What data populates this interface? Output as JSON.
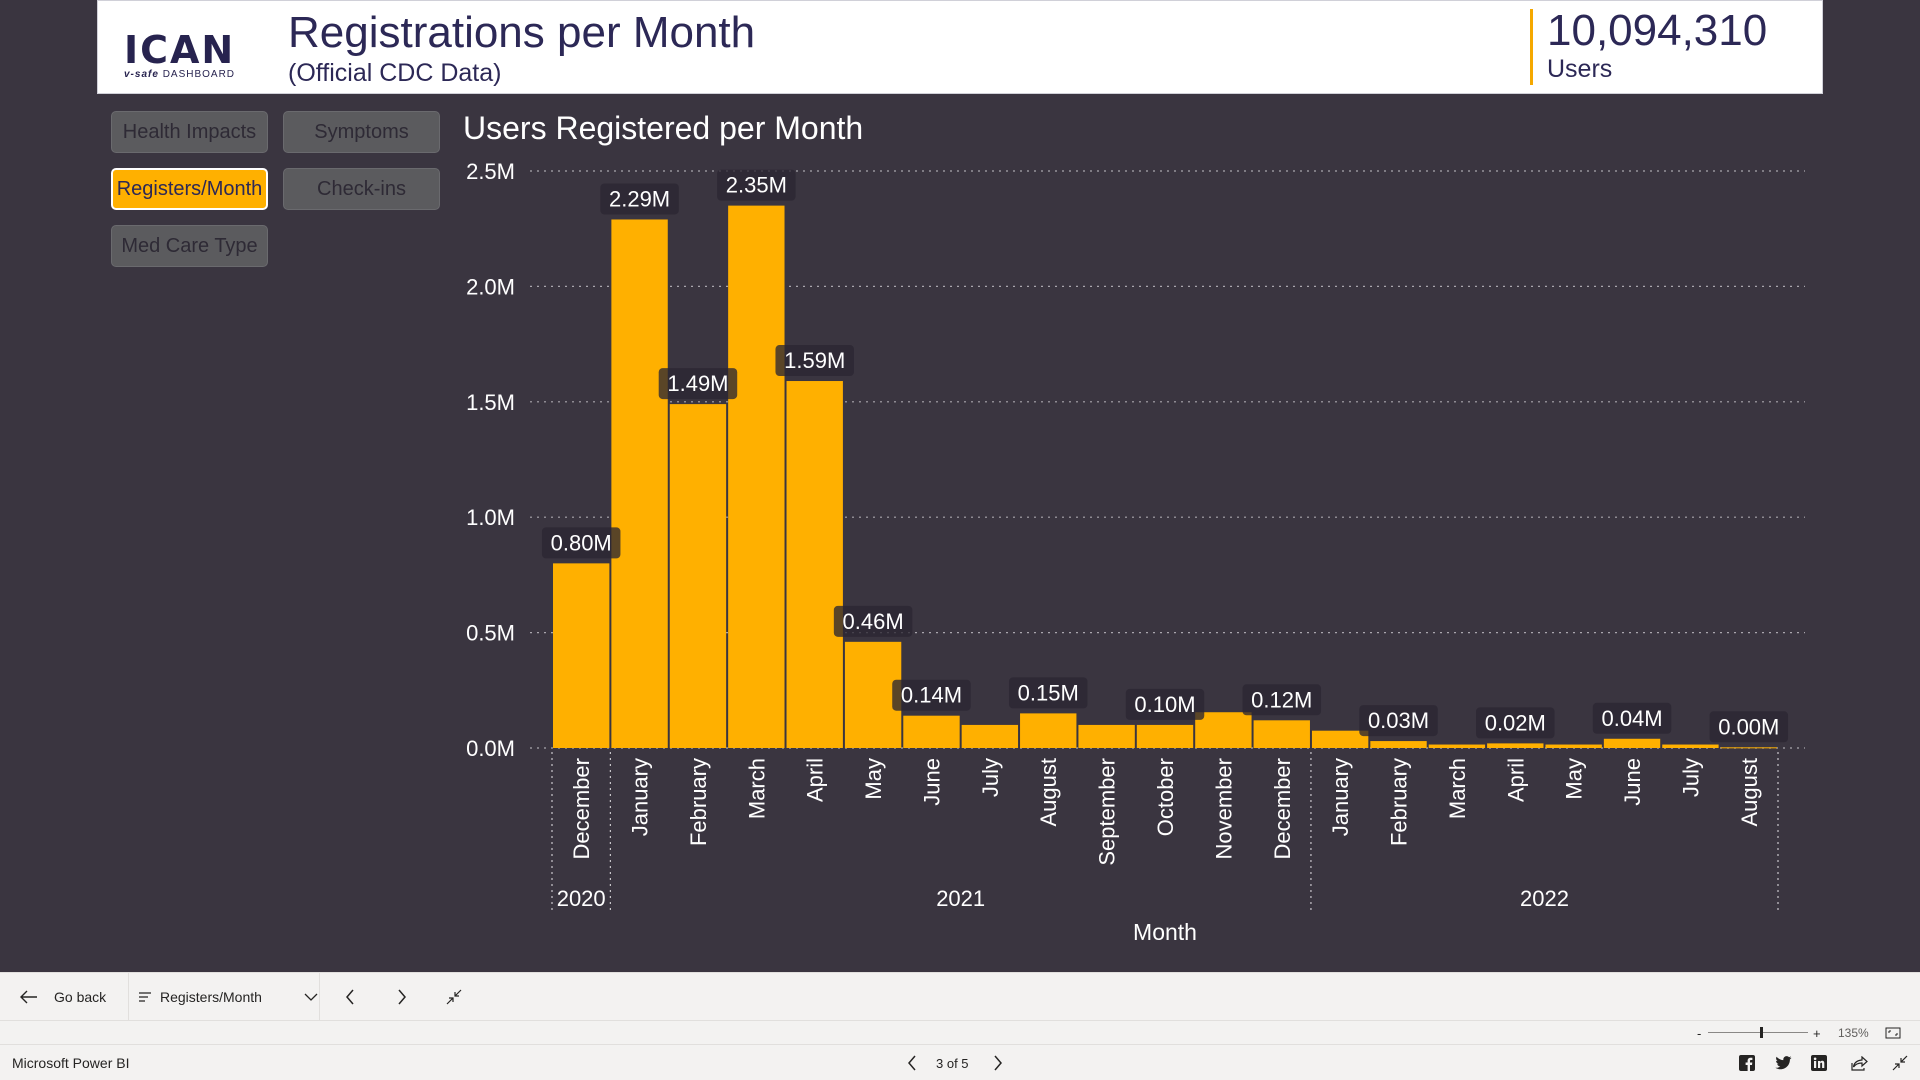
{
  "header": {
    "logo_text": "ICAN",
    "logo_sub_brand": "v-safe",
    "logo_sub_rest": "DASHBOARD",
    "title": "Registrations per Month",
    "subtitle": "(Official CDC Data)",
    "kpi_value": "10,094,310",
    "kpi_label": "Users",
    "accent_color": "#ffb000"
  },
  "nav": {
    "buttons": [
      {
        "label": "Health Impacts",
        "active": false
      },
      {
        "label": "Symptoms",
        "active": false
      },
      {
        "label": "Registers/Month",
        "active": true
      },
      {
        "label": "Check-ins",
        "active": false
      },
      {
        "label": "Med Care Type",
        "active": false
      }
    ]
  },
  "chart_data": {
    "type": "bar",
    "title": "Users Registered per Month",
    "xlabel": "Month",
    "ylabel": "",
    "ylim": [
      0,
      2500000
    ],
    "yticks": [
      "0.0M",
      "0.5M",
      "1.0M",
      "1.5M",
      "2.0M",
      "2.5M"
    ],
    "grid": true,
    "bar_color": "#ffb000",
    "categories": [
      "December",
      "January",
      "February",
      "March",
      "April",
      "May",
      "June",
      "July",
      "August",
      "September",
      "October",
      "November",
      "December",
      "January",
      "February",
      "March",
      "April",
      "May",
      "June",
      "July",
      "August"
    ],
    "years": [
      {
        "label": "2020",
        "span": 1
      },
      {
        "label": "2021",
        "span": 12
      },
      {
        "label": "2022",
        "span": 8
      }
    ],
    "values": [
      800000,
      2290000,
      1490000,
      2350000,
      1590000,
      460000,
      140000,
      100000,
      150000,
      100000,
      100000,
      155000,
      120000,
      75000,
      30000,
      15000,
      20000,
      15000,
      40000,
      15000,
      3000
    ],
    "data_labels": [
      "0.80M",
      "2.29M",
      "1.49M",
      "2.35M",
      "1.59M",
      "0.46M",
      "0.14M",
      "",
      "0.15M",
      "",
      "0.10M",
      "",
      "0.12M",
      "",
      "0.03M",
      "",
      "0.02M",
      "",
      "0.04M",
      "",
      "0.00M"
    ]
  },
  "bottom_bar": {
    "go_back": "Go back",
    "page_name": "Registers/Month"
  },
  "zoom": {
    "minus": "-",
    "plus": "+",
    "level": "135%"
  },
  "status": {
    "app_name": "Microsoft Power BI",
    "page_indicator": "3 of 5"
  }
}
